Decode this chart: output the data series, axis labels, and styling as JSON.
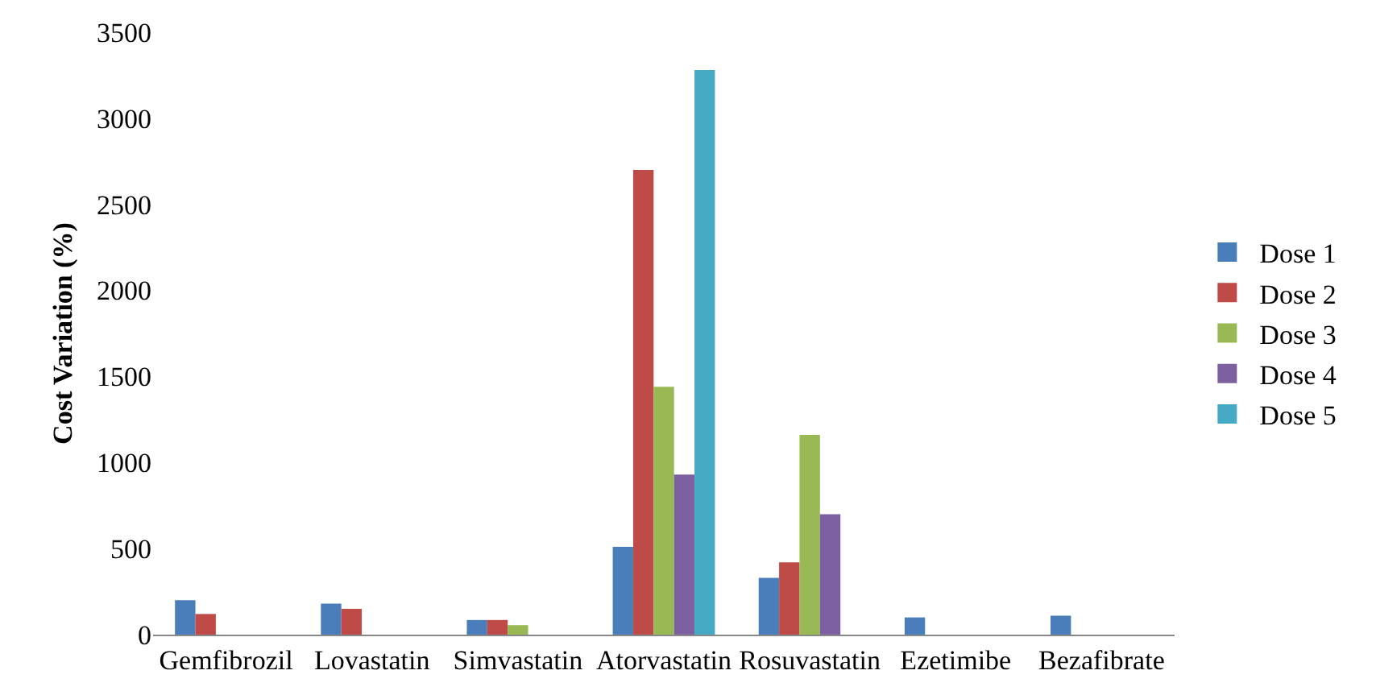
{
  "chart_data": {
    "type": "bar",
    "ylabel": "Cost Variation (%)",
    "categories": [
      "Gemfibrozil",
      "Lovastatin",
      "Simvastatin",
      "Atorvastatin",
      "Rosuvastatin",
      "Ezetimibe",
      "Bezafibrate"
    ],
    "series": [
      {
        "name": "Dose 1",
        "color": "#4a7ebb",
        "values": [
          200,
          180,
          85,
          510,
          330,
          100,
          110
        ]
      },
      {
        "name": "Dose 2",
        "color": "#be4b48",
        "values": [
          120,
          150,
          85,
          2700,
          420,
          null,
          null
        ]
      },
      {
        "name": "Dose 3",
        "color": "#98b954",
        "values": [
          null,
          null,
          55,
          1440,
          1160,
          null,
          null
        ]
      },
      {
        "name": "Dose 4",
        "color": "#7d60a0",
        "values": [
          null,
          null,
          null,
          930,
          700,
          null,
          null
        ]
      },
      {
        "name": "Dose 5",
        "color": "#46aac5",
        "values": [
          null,
          null,
          null,
          3280,
          null,
          null,
          null
        ]
      }
    ],
    "ylim": [
      0,
      3500
    ],
    "yticks": [
      0,
      500,
      1000,
      1500,
      2000,
      2500,
      3000,
      3500
    ],
    "grid": false,
    "legend": "right"
  }
}
